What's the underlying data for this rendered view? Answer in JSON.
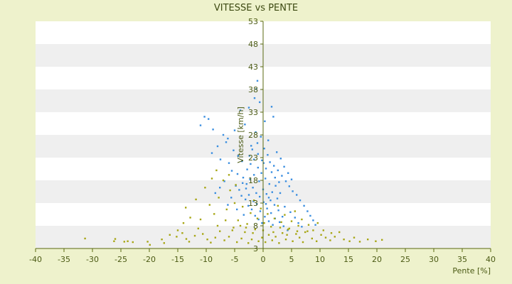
{
  "chart_data": {
    "type": "scatter",
    "title": "VITESSE vs PENTE",
    "xlabel": "Pente [%]",
    "ylabel": "Vitesse [km/h]",
    "xlim": [
      -40,
      40
    ],
    "ylim": [
      3,
      53
    ],
    "x_ticks": [
      "-40",
      "-35",
      "-30",
      "-25",
      "-20",
      "-15",
      "-10",
      "-5",
      "0",
      "5",
      "10",
      "15",
      "20",
      "25",
      "30",
      "35",
      "40"
    ],
    "y_ticks": [
      "3",
      "8",
      "13",
      "18",
      "23",
      "28",
      "33",
      "38",
      "43",
      "48",
      "53"
    ],
    "grid": true,
    "legend": "none",
    "colors": {
      "series_blue": "#3a8ee0",
      "series_olive": "#a7a614",
      "band_light": "#ffffff",
      "band_gray": "#efefef",
      "background": "#eef2cc",
      "axis": "#5a6a10"
    },
    "series": [
      {
        "color": "#3a8ee0",
        "points": [
          [
            -10.3,
            32.0
          ],
          [
            -9.6,
            31.5
          ],
          [
            -11.0,
            30.1
          ],
          [
            -8.8,
            29.2
          ],
          [
            -7.0,
            28.0
          ],
          [
            -6.2,
            27.2
          ],
          [
            -4.0,
            33.4
          ],
          [
            -2.5,
            34.0
          ],
          [
            -1.0,
            39.9
          ],
          [
            -1.2,
            38.1
          ],
          [
            -1.5,
            36.1
          ],
          [
            -0.6,
            35.2
          ],
          [
            1.5,
            34.2
          ],
          [
            1.8,
            32.0
          ],
          [
            0.3,
            31.0
          ],
          [
            -3.2,
            30.3
          ],
          [
            -5.0,
            29.0
          ],
          [
            -6.5,
            26.4
          ],
          [
            -8.0,
            25.5
          ],
          [
            -9.0,
            24.0
          ],
          [
            -7.5,
            22.6
          ],
          [
            -6.0,
            21.8
          ],
          [
            -5.5,
            20.1
          ],
          [
            -4.5,
            19.4
          ],
          [
            -3.5,
            18.6
          ],
          [
            -2.4,
            23.4
          ],
          [
            -1.9,
            24.8
          ],
          [
            -1.0,
            26.2
          ],
          [
            -0.4,
            27.6
          ],
          [
            0.2,
            25.0
          ],
          [
            0.8,
            23.6
          ],
          [
            1.2,
            22.0
          ],
          [
            1.9,
            21.2
          ],
          [
            2.6,
            20.2
          ],
          [
            3.3,
            19.0
          ],
          [
            4.0,
            17.8
          ],
          [
            4.6,
            16.7
          ],
          [
            5.2,
            15.6
          ],
          [
            5.9,
            14.8
          ],
          [
            6.5,
            13.6
          ],
          [
            7.2,
            12.4
          ],
          [
            7.8,
            11.2
          ],
          [
            8.3,
            10.2
          ],
          [
            8.8,
            9.2
          ],
          [
            9.2,
            8.2
          ],
          [
            -4.8,
            16.8
          ],
          [
            -4.2,
            15.9
          ],
          [
            -3.8,
            14.6
          ],
          [
            -3.1,
            13.8
          ],
          [
            -2.6,
            12.4
          ],
          [
            -2.0,
            11.6
          ],
          [
            -1.4,
            10.2
          ],
          [
            -0.8,
            9.4
          ],
          [
            -0.2,
            8.6
          ],
          [
            0.5,
            12.8
          ],
          [
            1.0,
            14.2
          ],
          [
            1.6,
            15.4
          ],
          [
            2.2,
            16.8
          ],
          [
            2.8,
            17.6
          ],
          [
            -2.8,
            20.4
          ],
          [
            -2.2,
            21.6
          ],
          [
            -1.6,
            22.6
          ],
          [
            -0.9,
            20.8
          ],
          [
            -0.3,
            19.6
          ],
          [
            0.4,
            18.4
          ],
          [
            1.1,
            17.2
          ],
          [
            -1.8,
            16.4
          ],
          [
            -1.2,
            15.2
          ],
          [
            -0.6,
            14.4
          ],
          [
            0.1,
            13.2
          ],
          [
            0.7,
            11.8
          ],
          [
            1.4,
            10.8
          ],
          [
            2.1,
            9.6
          ],
          [
            2.9,
            8.8
          ],
          [
            3.6,
            7.9
          ],
          [
            4.3,
            7.0
          ],
          [
            -6.8,
            17.8
          ],
          [
            -7.6,
            16.4
          ],
          [
            -8.4,
            15.2
          ],
          [
            -5.6,
            14.2
          ],
          [
            -6.2,
            12.6
          ],
          [
            -4.6,
            11.6
          ],
          [
            -3.4,
            10.4
          ],
          [
            3.8,
            12.2
          ],
          [
            4.8,
            11.0
          ],
          [
            5.6,
            9.8
          ],
          [
            6.2,
            8.6
          ],
          [
            6.8,
            7.8
          ],
          [
            -2.9,
            17.2
          ],
          [
            -2.3,
            18.2
          ],
          [
            -1.6,
            19.2
          ],
          [
            -0.7,
            17.8
          ],
          [
            0.0,
            16.0
          ],
          [
            0.6,
            15.0
          ],
          [
            1.3,
            13.6
          ],
          [
            2.0,
            12.6
          ],
          [
            2.7,
            11.4
          ],
          [
            3.4,
            10.0
          ],
          [
            -1.1,
            12.8
          ],
          [
            -0.5,
            11.2
          ],
          [
            0.3,
            10.0
          ],
          [
            1.0,
            9.0
          ],
          [
            1.7,
            8.2
          ],
          [
            -3.7,
            22.2
          ],
          [
            -4.4,
            23.4
          ],
          [
            -5.2,
            24.6
          ],
          [
            -2.1,
            25.6
          ],
          [
            -1.3,
            28.6
          ],
          [
            0.9,
            26.8
          ],
          [
            2.4,
            24.2
          ],
          [
            3.1,
            22.8
          ],
          [
            3.7,
            21.0
          ],
          [
            4.4,
            19.6
          ],
          [
            5.0,
            18.2
          ],
          [
            -0.2,
            22.4
          ],
          [
            0.5,
            20.6
          ],
          [
            -1.7,
            13.4
          ],
          [
            -2.5,
            14.8
          ],
          [
            -3.0,
            16.2
          ],
          [
            -3.6,
            17.4
          ],
          [
            2.5,
            14.0
          ],
          [
            3.0,
            15.2
          ],
          [
            -0.9,
            23.8
          ],
          [
            0.1,
            21.8
          ],
          [
            1.5,
            19.8
          ],
          [
            2.1,
            18.6
          ]
        ]
      },
      {
        "color": "#a7a614",
        "points": [
          [
            -31.3,
            5.2
          ],
          [
            -26.0,
            5.1
          ],
          [
            -26.2,
            4.6
          ],
          [
            -24.4,
            4.5
          ],
          [
            -23.8,
            4.6
          ],
          [
            -22.9,
            4.4
          ],
          [
            -20.3,
            4.5
          ],
          [
            -19.9,
            3.8
          ],
          [
            -17.8,
            5.0
          ],
          [
            -17.4,
            4.2
          ],
          [
            -15.2,
            5.6
          ],
          [
            -14.2,
            6.4
          ],
          [
            -13.5,
            5.1
          ],
          [
            -13.0,
            4.5
          ],
          [
            -12.0,
            5.8
          ],
          [
            -11.4,
            7.4
          ],
          [
            -10.6,
            6.2
          ],
          [
            -9.8,
            5.0
          ],
          [
            -9.2,
            4.3
          ],
          [
            -8.4,
            5.4
          ],
          [
            -7.6,
            6.8
          ],
          [
            -6.8,
            4.8
          ],
          [
            -6.0,
            5.6
          ],
          [
            -5.2,
            7.6
          ],
          [
            -4.6,
            4.4
          ],
          [
            -3.8,
            5.2
          ],
          [
            -3.2,
            6.6
          ],
          [
            -2.6,
            4.2
          ],
          [
            -2.0,
            5.0
          ],
          [
            -1.4,
            7.2
          ],
          [
            -0.8,
            4.6
          ],
          [
            -0.2,
            5.4
          ],
          [
            0.4,
            4.4
          ],
          [
            1.0,
            6.0
          ],
          [
            1.6,
            4.8
          ],
          [
            2.2,
            5.6
          ],
          [
            2.8,
            4.2
          ],
          [
            3.4,
            6.4
          ],
          [
            4.0,
            5.0
          ],
          [
            4.6,
            7.4
          ],
          [
            5.2,
            4.6
          ],
          [
            5.8,
            6.2
          ],
          [
            6.4,
            5.4
          ],
          [
            7.0,
            4.4
          ],
          [
            7.8,
            6.8
          ],
          [
            8.6,
            5.2
          ],
          [
            9.4,
            4.6
          ],
          [
            10.2,
            6.0
          ],
          [
            11.0,
            5.4
          ],
          [
            11.8,
            4.8
          ],
          [
            12.6,
            5.6
          ],
          [
            13.4,
            6.6
          ],
          [
            14.2,
            5.0
          ],
          [
            15.2,
            4.6
          ],
          [
            16.0,
            5.4
          ],
          [
            17.0,
            4.5
          ],
          [
            18.4,
            5.0
          ],
          [
            19.8,
            4.6
          ],
          [
            20.9,
            4.9
          ],
          [
            -11.8,
            13.8
          ],
          [
            -12.8,
            9.8
          ],
          [
            -13.6,
            12.0
          ],
          [
            -10.2,
            16.4
          ],
          [
            -9.4,
            12.6
          ],
          [
            -8.6,
            10.6
          ],
          [
            -7.8,
            14.2
          ],
          [
            -7.0,
            18.0
          ],
          [
            -6.4,
            11.6
          ],
          [
            -5.8,
            15.8
          ],
          [
            -5.0,
            13.0
          ],
          [
            -4.4,
            9.2
          ],
          [
            -3.6,
            12.2
          ],
          [
            -2.8,
            8.4
          ],
          [
            -2.2,
            10.8
          ],
          [
            -1.6,
            13.6
          ],
          [
            -1.0,
            9.6
          ],
          [
            -0.4,
            11.8
          ],
          [
            0.2,
            8.6
          ],
          [
            0.8,
            10.6
          ],
          [
            1.4,
            7.8
          ],
          [
            2.0,
            9.6
          ],
          [
            2.6,
            12.4
          ],
          [
            3.2,
            8.8
          ],
          [
            3.8,
            10.4
          ],
          [
            4.4,
            7.2
          ],
          [
            5.0,
            9.0
          ],
          [
            5.6,
            11.2
          ],
          [
            6.2,
            8.0
          ],
          [
            6.8,
            9.4
          ],
          [
            7.4,
            6.6
          ],
          [
            8.0,
            8.2
          ],
          [
            8.8,
            7.0
          ],
          [
            9.6,
            8.6
          ],
          [
            -15.0,
            7.0
          ],
          [
            -14.0,
            8.6
          ],
          [
            -16.4,
            6.0
          ],
          [
            -11.0,
            9.4
          ],
          [
            -8.0,
            8.0
          ],
          [
            -6.6,
            9.2
          ],
          [
            -5.4,
            7.0
          ],
          [
            -4.0,
            8.0
          ],
          [
            -3.0,
            7.6
          ],
          [
            -1.8,
            6.4
          ],
          [
            0.0,
            7.0
          ],
          [
            1.8,
            6.6
          ],
          [
            3.0,
            7.6
          ],
          [
            4.2,
            6.0
          ],
          [
            6.0,
            6.8
          ],
          [
            10.6,
            7.0
          ],
          [
            12.0,
            6.4
          ],
          [
            -9.0,
            18.4
          ],
          [
            -8.2,
            20.2
          ],
          [
            -6.0,
            19.2
          ],
          [
            -4.8,
            17.0
          ]
        ]
      }
    ]
  }
}
